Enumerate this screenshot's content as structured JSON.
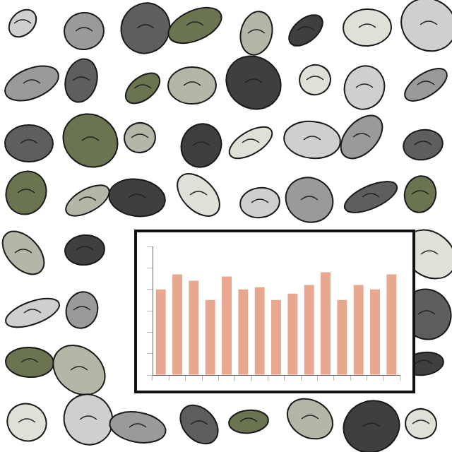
{
  "chart_data": {
    "type": "bar",
    "categories": [
      null,
      null,
      null,
      null,
      null,
      null,
      null,
      null,
      null,
      null,
      null,
      null,
      null,
      null,
      null
    ],
    "values": [
      40,
      47,
      44,
      35,
      46,
      40,
      41,
      35,
      38,
      42,
      48,
      35,
      42,
      40,
      47
    ],
    "color": "#e8a890",
    "ylim": [
      0,
      60
    ],
    "yticks": [
      0,
      10,
      20,
      30,
      40,
      50,
      60
    ],
    "grid": false,
    "tick_labels": false
  }
}
